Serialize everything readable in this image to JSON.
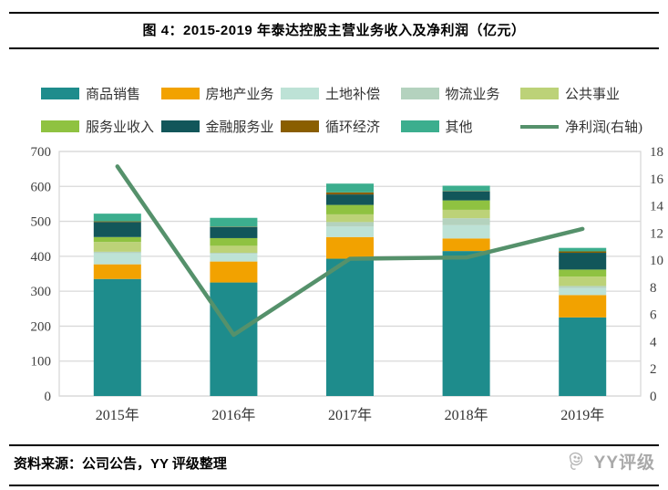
{
  "header": {
    "title": "图 4：2015-2019 年泰达控股主营业务收入及净利润（亿元）"
  },
  "footer": {
    "source": "资料来源：公司公告，YY 评级整理",
    "logo_text": "YY评级",
    "logo_icon": "megaphone-doodle-icon"
  },
  "chart_data": {
    "type": "bar",
    "subtype": "stacked-bars-with-right-axis-line",
    "title": "2015-2019 年泰达控股主营业务收入及净利润（亿元）",
    "categories": [
      "2015年",
      "2016年",
      "2017年",
      "2018年",
      "2019年"
    ],
    "series": [
      {
        "name": "商品销售",
        "color": "#1E8C8C",
        "values": [
          335,
          325,
          393,
          415,
          225
        ]
      },
      {
        "name": "房地产业务",
        "color": "#F2A200",
        "values": [
          42,
          60,
          62,
          36,
          64
        ]
      },
      {
        "name": "土地补偿",
        "color": "#BDE2D6",
        "values": [
          32,
          22,
          30,
          38,
          20
        ]
      },
      {
        "name": "物流业务",
        "color": "#B4D2BE",
        "values": [
          4,
          3,
          13,
          20,
          6
        ]
      },
      {
        "name": "公共事业",
        "color": "#BCD278",
        "values": [
          28,
          20,
          22,
          24,
          27
        ]
      },
      {
        "name": "服务业收入",
        "color": "#8FC241",
        "values": [
          14,
          22,
          27,
          27,
          20
        ]
      },
      {
        "name": "金融服务业",
        "color": "#12565A",
        "values": [
          43,
          32,
          30,
          26,
          48
        ]
      },
      {
        "name": "循环经济",
        "color": "#8A5E00",
        "values": [
          2,
          1,
          6,
          1,
          4
        ]
      },
      {
        "name": "其他",
        "color": "#3CAE8E",
        "values": [
          22,
          25,
          25,
          15,
          10
        ]
      }
    ],
    "bar_totals": [
      522,
      510,
      608,
      602,
      424
    ],
    "line_series": {
      "name": "净利润(右轴)",
      "color": "#55916B",
      "values": [
        16.9,
        4.5,
        10.1,
        10.2,
        12.3
      ]
    },
    "left_axis": {
      "min": 0,
      "max": 700,
      "step": 100,
      "ticks": [
        "0",
        "100",
        "200",
        "300",
        "400",
        "500",
        "600",
        "700"
      ]
    },
    "right_axis": {
      "min": 0,
      "max": 18,
      "step": 2,
      "ticks": [
        "0",
        "2",
        "4",
        "6",
        "8",
        "10",
        "12",
        "14",
        "16",
        "18"
      ]
    },
    "grid": "horizontal",
    "grid_color": "#D9D9D9",
    "legend_position": "top"
  }
}
